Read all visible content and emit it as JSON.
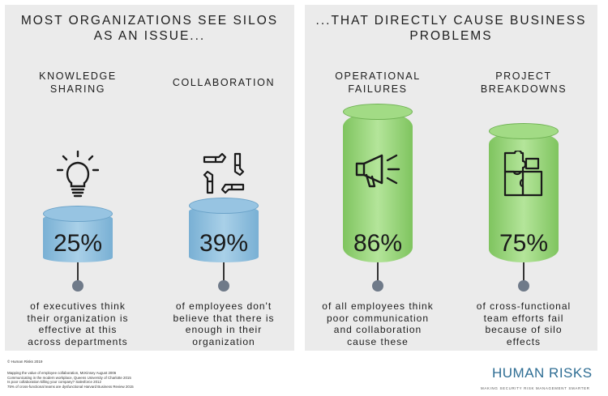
{
  "left_panel": {
    "title_line1": "MOST ORGANIZATIONS SEE SILOS",
    "title_line2": "AS AN ISSUE...",
    "stats": [
      {
        "label_line1": "KNOWLEDGE",
        "label_line2": "SHARING",
        "icon": "lightbulb-icon",
        "value": "25%",
        "percent": 25,
        "desc": [
          "of executives think",
          "their organization is",
          "effective at this",
          "across departments"
        ]
      },
      {
        "label_line1": "COLLABORATION",
        "label_line2": "",
        "icon": "hands-circle-icon",
        "value": "39%",
        "percent": 39,
        "desc": [
          "of employees don't",
          "believe that there is",
          "enough in their",
          "organization"
        ]
      }
    ]
  },
  "right_panel": {
    "title_line1": "...THAT DIRECTLY CAUSE BUSINESS",
    "title_line2": "PROBLEMS",
    "stats": [
      {
        "label_line1": "OPERATIONAL",
        "label_line2": "FAILURES",
        "icon": "megaphone-icon",
        "value": "86%",
        "percent": 86,
        "desc": [
          "of all employees think",
          "poor communication",
          "and collaboration",
          "cause these"
        ]
      },
      {
        "label_line1": "PROJECT",
        "label_line2": "BREAKDOWNS",
        "icon": "puzzle-icon",
        "value": "75%",
        "percent": 75,
        "desc": [
          "of cross-functional",
          "team efforts fail",
          "because of silo",
          "effects"
        ]
      }
    ]
  },
  "colors": {
    "blue_cylinder": "#7fb6d8",
    "green_cylinder": "#8fd072",
    "dot": "#6f7a89",
    "brand": "#2f6e94"
  },
  "footer": {
    "copyright": "© Human Risks 2019",
    "sources": [
      "Mapping the value of employee collaboration, McKinsey August 2006",
      "Communicating in the modern workplace, Queens University of Charlotte 2015",
      "Is poor collaboration killing your company? Salesforce 2012",
      "75% of cross-functional teams are dysfunctional Harvard Business Review 2015"
    ],
    "brand": "HUMAN RISKS",
    "tagline": "MAKING SECURITY RISK MANAGEMENT SMARTER"
  }
}
